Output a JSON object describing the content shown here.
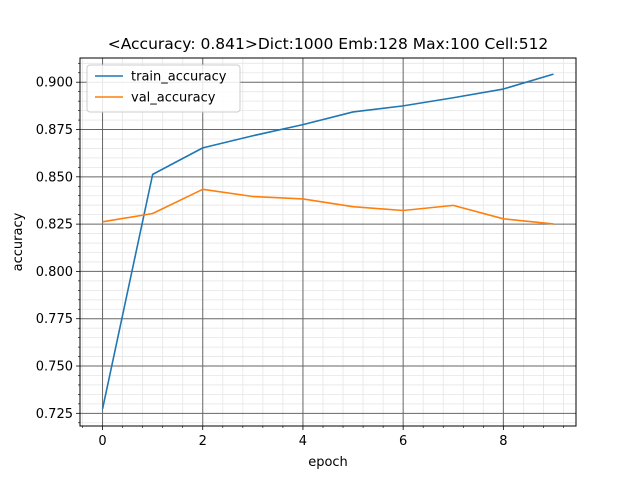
{
  "chart_data": {
    "type": "line",
    "title": "<Accuracy: 0.841>Dict:1000 Emb:128 Max:100 Cell:512",
    "xlabel": "epoch",
    "ylabel": "accuracy",
    "x": [
      0,
      1,
      2,
      3,
      4,
      5,
      6,
      7,
      8,
      9
    ],
    "xlim": [
      -0.45,
      9.45
    ],
    "ylim": [
      0.7183,
      0.9128
    ],
    "xticks": [
      0,
      2,
      4,
      6,
      8
    ],
    "yticks": [
      0.725,
      0.75,
      0.775,
      0.8,
      0.825,
      0.85,
      0.875,
      0.9
    ],
    "xtick_labels": [
      "0",
      "2",
      "4",
      "6",
      "8"
    ],
    "ytick_labels": [
      "0.725",
      "0.750",
      "0.775",
      "0.800",
      "0.825",
      "0.850",
      "0.875",
      "0.900"
    ],
    "grid": true,
    "minor_grid": true,
    "legend_position": "top-left",
    "series": [
      {
        "name": "train_accuracy",
        "color": "#1f77b4",
        "values": [
          0.7273,
          0.8513,
          0.8653,
          0.8717,
          0.8776,
          0.8843,
          0.8875,
          0.8918,
          0.8964,
          0.9043
        ]
      },
      {
        "name": "val_accuracy",
        "color": "#ff7f0e",
        "values": [
          0.8262,
          0.8306,
          0.8434,
          0.8396,
          0.8383,
          0.8342,
          0.8322,
          0.8349,
          0.8278,
          0.8251
        ]
      }
    ]
  }
}
